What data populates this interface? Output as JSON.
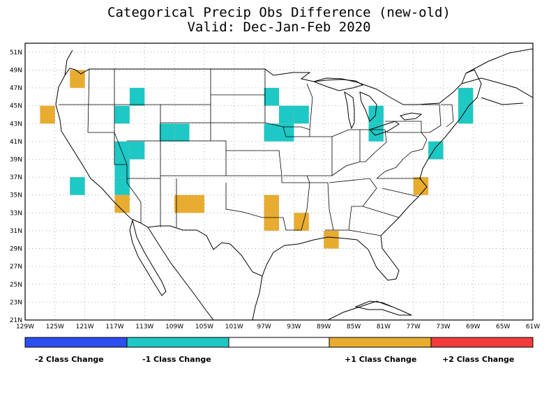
{
  "title": "Categorical Precip Obs Difference (new-old)",
  "subtitle": "Valid: Dec-Jan-Feb 2020",
  "map": {
    "lat_labels": [
      "51N",
      "49N",
      "47N",
      "45N",
      "43N",
      "41N",
      "39N",
      "37N",
      "35N",
      "33N",
      "31N",
      "29N",
      "27N",
      "25N",
      "23N",
      "21N"
    ],
    "lon_labels": [
      "129W",
      "125W",
      "121W",
      "117W",
      "113W",
      "109W",
      "105W",
      "101W",
      "97W",
      "93W",
      "89W",
      "85W",
      "81W",
      "77W",
      "73W",
      "69W",
      "65W",
      "61W"
    ],
    "lon_range": [
      -129,
      -61
    ],
    "lat_range": [
      21,
      52
    ],
    "grid": "dotted",
    "cell_size_deg": 2
  },
  "colors": {
    "minus2": "#2b4ff0",
    "minus1": "#1ec8c4",
    "neutral": "#ffffff",
    "plus1": "#e8ac30",
    "plus2": "#f23c3c"
  },
  "cells_minus1": [
    [
      -114,
      46
    ],
    [
      -116,
      44
    ],
    [
      -110,
      42
    ],
    [
      -108,
      42
    ],
    [
      -116,
      40
    ],
    [
      -114,
      40
    ],
    [
      -116,
      38
    ],
    [
      -116,
      36
    ],
    [
      -122,
      36
    ],
    [
      -96,
      46
    ],
    [
      -94,
      44
    ],
    [
      -92,
      44
    ],
    [
      -96,
      42
    ],
    [
      -94,
      42
    ],
    [
      -82,
      44
    ],
    [
      -82,
      42
    ],
    [
      -70,
      46
    ],
    [
      -70,
      44
    ],
    [
      -74,
      40
    ]
  ],
  "cells_plus1": [
    [
      -122,
      48
    ],
    [
      -126,
      44
    ],
    [
      -116,
      34
    ],
    [
      -108,
      34
    ],
    [
      -106,
      34
    ],
    [
      -96,
      34
    ],
    [
      -96,
      32
    ],
    [
      -92,
      32
    ],
    [
      -88,
      30
    ],
    [
      -76,
      36
    ]
  ],
  "legend": {
    "labels": [
      "-2 Class Change",
      "-1 Class Change",
      "+1 Class Change",
      "+2 Class Change"
    ]
  }
}
